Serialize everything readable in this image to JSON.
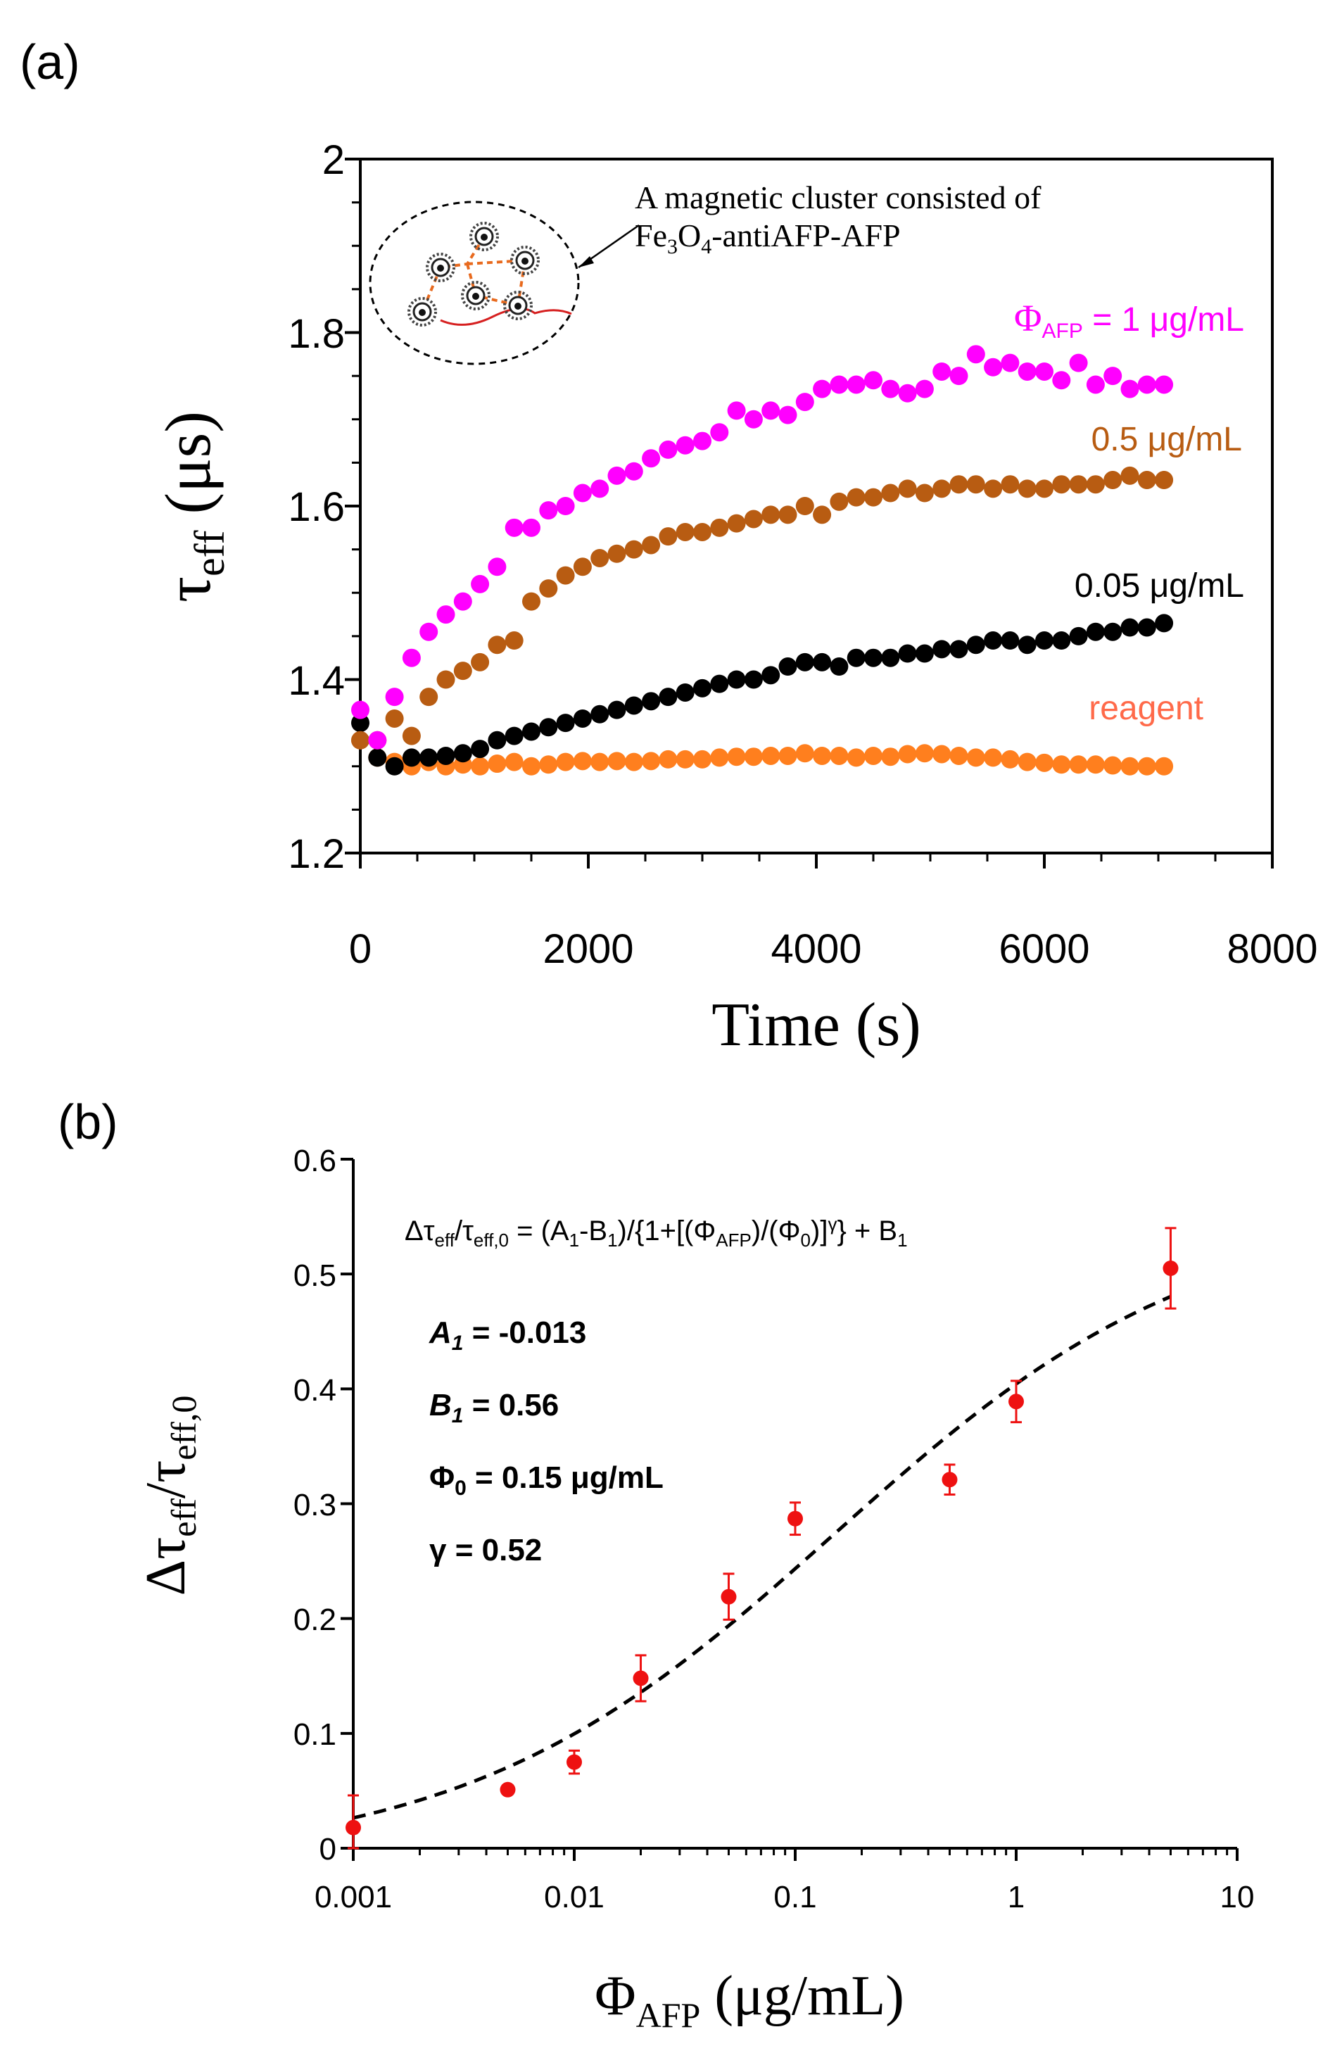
{
  "chart_data": [
    {
      "type": "scatter",
      "panel_label": "(a)",
      "xlabel": "Time (s)",
      "ylabel_main": "τ",
      "ylabel_sub": "eff",
      "ylabel_unit": " (μs)",
      "xlim": [
        0,
        8000
      ],
      "ylim": [
        1.2,
        2.0
      ],
      "x_ticks": [
        "0",
        "2000",
        "4000",
        "6000",
        "8000"
      ],
      "y_ticks": [
        "1.2",
        "1.4",
        "1.6",
        "1.8",
        "2"
      ],
      "annotation_line1": "A magnetic cluster consisted of",
      "annotation_line2_parts": [
        "Fe",
        "3",
        "O",
        "4",
        "-antiAFP-AFP"
      ],
      "series": [
        {
          "name": "ΦAFP = 1 μg/mL",
          "label_main": "Φ",
          "label_sub": "AFP",
          "label_rest": " = 1 μg/mL",
          "color": "#ff00ff",
          "x": [
            0,
            150,
            300,
            450,
            600,
            750,
            900,
            1050,
            1200,
            1350,
            1500,
            1650,
            1800,
            1950,
            2100,
            2250,
            2400,
            2550,
            2700,
            2850,
            3000,
            3150,
            3300,
            3450,
            3600,
            3750,
            3900,
            4050,
            4200,
            4350,
            4500,
            4650,
            4800,
            4950,
            5100,
            5250,
            5400,
            5550,
            5700,
            5850,
            6000,
            6150,
            6300,
            6450,
            6600,
            6750,
            6900,
            7050
          ],
          "y": [
            1.365,
            1.33,
            1.38,
            1.425,
            1.455,
            1.475,
            1.49,
            1.51,
            1.53,
            1.575,
            1.575,
            1.595,
            1.6,
            1.615,
            1.62,
            1.635,
            1.64,
            1.655,
            1.665,
            1.67,
            1.675,
            1.685,
            1.71,
            1.7,
            1.71,
            1.705,
            1.72,
            1.735,
            1.74,
            1.74,
            1.745,
            1.735,
            1.73,
            1.735,
            1.755,
            1.75,
            1.775,
            1.76,
            1.765,
            1.755,
            1.755,
            1.745,
            1.765,
            1.74,
            1.75,
            1.735,
            1.74,
            1.74
          ]
        },
        {
          "name": "0.5 μg/mL",
          "label_main": "0.5 μg/mL",
          "color": "#b85c12",
          "x": [
            0,
            150,
            300,
            450,
            600,
            750,
            900,
            1050,
            1200,
            1350,
            1500,
            1650,
            1800,
            1950,
            2100,
            2250,
            2400,
            2550,
            2700,
            2850,
            3000,
            3150,
            3300,
            3450,
            3600,
            3750,
            3900,
            4050,
            4200,
            4350,
            4500,
            4650,
            4800,
            4950,
            5100,
            5250,
            5400,
            5550,
            5700,
            5850,
            6000,
            6150,
            6300,
            6450,
            6600,
            6750,
            6900,
            7050
          ],
          "y": [
            1.33,
            1.33,
            1.355,
            1.335,
            1.38,
            1.4,
            1.41,
            1.42,
            1.44,
            1.445,
            1.49,
            1.505,
            1.52,
            1.53,
            1.54,
            1.545,
            1.55,
            1.555,
            1.565,
            1.57,
            1.57,
            1.575,
            1.58,
            1.585,
            1.59,
            1.59,
            1.6,
            1.59,
            1.605,
            1.61,
            1.61,
            1.615,
            1.62,
            1.615,
            1.62,
            1.625,
            1.625,
            1.62,
            1.625,
            1.62,
            1.62,
            1.625,
            1.625,
            1.625,
            1.63,
            1.635,
            1.63,
            1.63
          ]
        },
        {
          "name": "0.05 μg/mL",
          "label_main": "0.05 μg/mL",
          "color": "#000000",
          "x": [
            0,
            150,
            300,
            450,
            600,
            750,
            900,
            1050,
            1200,
            1350,
            1500,
            1650,
            1800,
            1950,
            2100,
            2250,
            2400,
            2550,
            2700,
            2850,
            3000,
            3150,
            3300,
            3450,
            3600,
            3750,
            3900,
            4050,
            4200,
            4350,
            4500,
            4650,
            4800,
            4950,
            5100,
            5250,
            5400,
            5550,
            5700,
            5850,
            6000,
            6150,
            6300,
            6450,
            6600,
            6750,
            6900,
            7050
          ],
          "y": [
            1.35,
            1.31,
            1.3,
            1.31,
            1.31,
            1.312,
            1.315,
            1.32,
            1.33,
            1.335,
            1.34,
            1.345,
            1.35,
            1.355,
            1.36,
            1.365,
            1.37,
            1.375,
            1.38,
            1.385,
            1.39,
            1.395,
            1.4,
            1.4,
            1.405,
            1.415,
            1.42,
            1.42,
            1.415,
            1.425,
            1.425,
            1.425,
            1.43,
            1.43,
            1.435,
            1.435,
            1.44,
            1.445,
            1.445,
            1.44,
            1.445,
            1.445,
            1.45,
            1.455,
            1.455,
            1.46,
            1.46,
            1.465
          ]
        },
        {
          "name": "reagent",
          "label_main": "reagent",
          "color": "#ff7f1e",
          "label_color": "#ff6a4a",
          "x": [
            0,
            150,
            300,
            450,
            600,
            750,
            900,
            1050,
            1200,
            1350,
            1500,
            1650,
            1800,
            1950,
            2100,
            2250,
            2400,
            2550,
            2700,
            2850,
            3000,
            3150,
            3300,
            3450,
            3600,
            3750,
            3900,
            4050,
            4200,
            4350,
            4500,
            4650,
            4800,
            4950,
            5100,
            5250,
            5400,
            5550,
            5700,
            5850,
            6000,
            6150,
            6300,
            6450,
            6600,
            6750,
            6900,
            7050
          ],
          "y": [
            1.33,
            1.31,
            1.305,
            1.3,
            1.305,
            1.3,
            1.302,
            1.3,
            1.303,
            1.305,
            1.3,
            1.302,
            1.305,
            1.306,
            1.305,
            1.306,
            1.305,
            1.306,
            1.308,
            1.308,
            1.308,
            1.31,
            1.311,
            1.311,
            1.312,
            1.312,
            1.315,
            1.312,
            1.312,
            1.31,
            1.312,
            1.311,
            1.314,
            1.315,
            1.314,
            1.312,
            1.31,
            1.31,
            1.308,
            1.305,
            1.304,
            1.302,
            1.302,
            1.302,
            1.301,
            1.3,
            1.3,
            1.3
          ]
        }
      ]
    },
    {
      "type": "scatter",
      "panel_label": "(b)",
      "xscale": "log",
      "xlabel_main": "Φ",
      "xlabel_sub": "AFP",
      "xlabel_rest": " (μg/mL)",
      "ylabel_parts": [
        "Δτ",
        "eff",
        "/τ",
        "eff,0"
      ],
      "xlim": [
        0.001,
        10
      ],
      "ylim": [
        0,
        0.6
      ],
      "x_ticks": [
        "0.001",
        "0.01",
        "0.1",
        "1",
        "10"
      ],
      "y_ticks": [
        "0",
        "0.1",
        "0.2",
        "0.3",
        "0.4",
        "0.5",
        "0.6"
      ],
      "equation_parts": [
        "Δτ",
        "eff",
        "/τ",
        "eff,0",
        " = (A",
        "1",
        "-B",
        "1",
        ")/{1+[(Φ",
        "AFP",
        ")/(Φ",
        "0",
        ")]",
        "γ",
        "} + B",
        "1"
      ],
      "params": [
        {
          "name": "A",
          "sub": "1",
          "text": " = -0.013",
          "italic": true
        },
        {
          "name": "B",
          "sub": "1",
          "text": " = 0.56",
          "italic": true
        },
        {
          "name": "Φ",
          "sub": "0",
          "text": " = 0.15 μg/mL",
          "italic": false
        },
        {
          "name": "γ",
          "sub": "",
          "text": " = 0.52",
          "italic": false
        }
      ],
      "fit": {
        "A1": -0.013,
        "B1": 0.56,
        "phi0": 0.15,
        "gamma": 0.52,
        "color": "#000000",
        "style": "dashed"
      },
      "points": {
        "color": "#ee1111",
        "x": [
          0.001,
          0.005,
          0.01,
          0.02,
          0.05,
          0.1,
          0.5,
          1,
          5
        ],
        "y": [
          0.018,
          0.051,
          0.075,
          0.148,
          0.219,
          0.287,
          0.321,
          0.389,
          0.505
        ],
        "err": [
          0.028,
          0,
          0.01,
          0.02,
          0.02,
          0.014,
          0.013,
          0.018,
          0.035
        ]
      }
    }
  ]
}
